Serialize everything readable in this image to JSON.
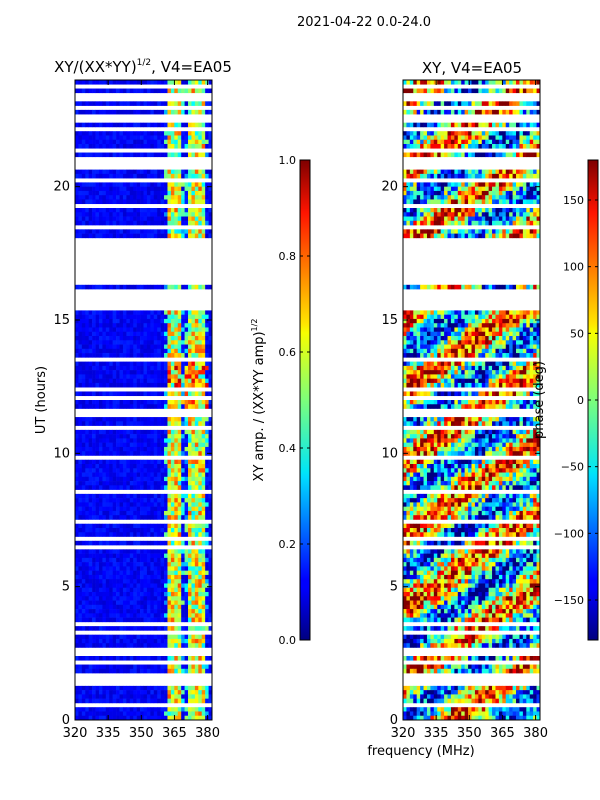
{
  "figure": {
    "suptitle": "2021-04-22 0.0-24.0",
    "xlabel_shared": "frequency (MHz)"
  },
  "chart_data": [
    {
      "type": "heatmap",
      "title": "XY/(XX*YY)^1/2, V4=EA05",
      "title_main": "XY/(XX*YY)",
      "title_exp": "1/2",
      "title_tail": ", V4=EA05",
      "xlabel": "",
      "ylabel": "UT (hours)",
      "xlim": [
        320,
        382
      ],
      "ylim": [
        0,
        24
      ],
      "xticks": [
        320,
        335,
        350,
        365,
        380
      ],
      "yticks": [
        0,
        5,
        10,
        15,
        20
      ],
      "colorbar": {
        "label": "XY amp. / (XX*YY amp)^1/2",
        "label_main": "XY amp. / (XX*YY amp)",
        "label_exp": "1/2",
        "range": [
          0.0,
          1.0
        ],
        "ticks": [
          "0.0",
          "0.2",
          "0.4",
          "0.6",
          "0.8",
          "1.0"
        ],
        "colormap": "jet"
      },
      "gaps_hours": [
        [
          16.35,
          18.05
        ],
        [
          15.35,
          16.2
        ],
        [
          2.45,
          2.75
        ],
        [
          23.3,
          23.55
        ]
      ],
      "bright_channels_mhz": [
        363,
        367,
        372,
        375,
        378
      ]
    },
    {
      "type": "heatmap",
      "title": "XY, V4=EA05",
      "xlabel": "",
      "ylabel": "",
      "xlim": [
        320,
        382
      ],
      "ylim": [
        0,
        24
      ],
      "xticks": [
        320,
        335,
        350,
        365,
        380
      ],
      "yticks": [
        0,
        5,
        10,
        15,
        20
      ],
      "colorbar": {
        "label": "phase (deg)",
        "range": [
          -180,
          180
        ],
        "ticks": [
          "-150",
          "-100",
          "-50",
          "0",
          "50",
          "100",
          "150"
        ],
        "colormap": "jet"
      },
      "gaps_hours": [
        [
          16.35,
          18.05
        ],
        [
          15.35,
          16.2
        ],
        [
          23.3,
          23.55
        ]
      ]
    }
  ]
}
